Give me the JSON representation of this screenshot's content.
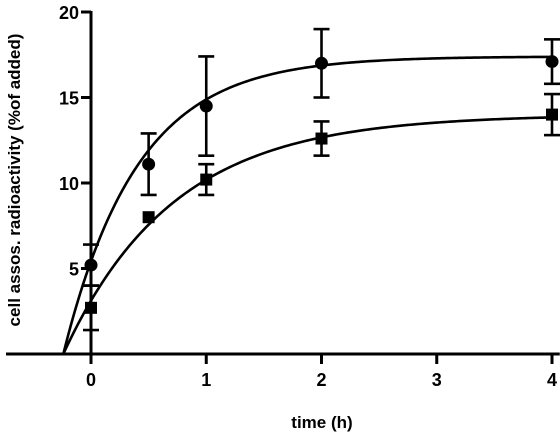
{
  "chart_data": {
    "type": "scatter",
    "title": "",
    "xlabel": "time (h)",
    "ylabel": "cell assos. radioactivity (%of added)",
    "xlim": [
      -0.4,
      4.05
    ],
    "ylim": [
      0,
      20
    ],
    "xticks": [
      0,
      1,
      2,
      3,
      4
    ],
    "yticks": [
      5,
      10,
      15,
      20
    ],
    "xtick_labels": [
      "0",
      "1",
      "2",
      "3",
      "4"
    ],
    "ytick_labels": [
      "5",
      "10",
      "15",
      "20"
    ],
    "grid": false,
    "legend": "none",
    "series": [
      {
        "marker": "circle",
        "color": "#000000",
        "x": [
          0,
          0.5,
          1,
          2,
          4
        ],
        "y": [
          5.2,
          11.1,
          14.5,
          17.0,
          17.1
        ],
        "err": [
          1.2,
          1.8,
          2.9,
          2.0,
          1.3
        ],
        "fit": {
          "plateau": 17.4,
          "k": 1.56,
          "x0": -0.24
        }
      },
      {
        "marker": "square",
        "color": "#000000",
        "x": [
          0,
          0.5,
          1,
          2,
          4
        ],
        "y": [
          2.7,
          8.0,
          10.2,
          12.6,
          14.0
        ],
        "err": [
          1.3,
          0.0,
          0.9,
          1.0,
          1.2
        ],
        "fit": {
          "plateau": 14.0,
          "k": 1.05,
          "x0": -0.24
        }
      }
    ]
  }
}
